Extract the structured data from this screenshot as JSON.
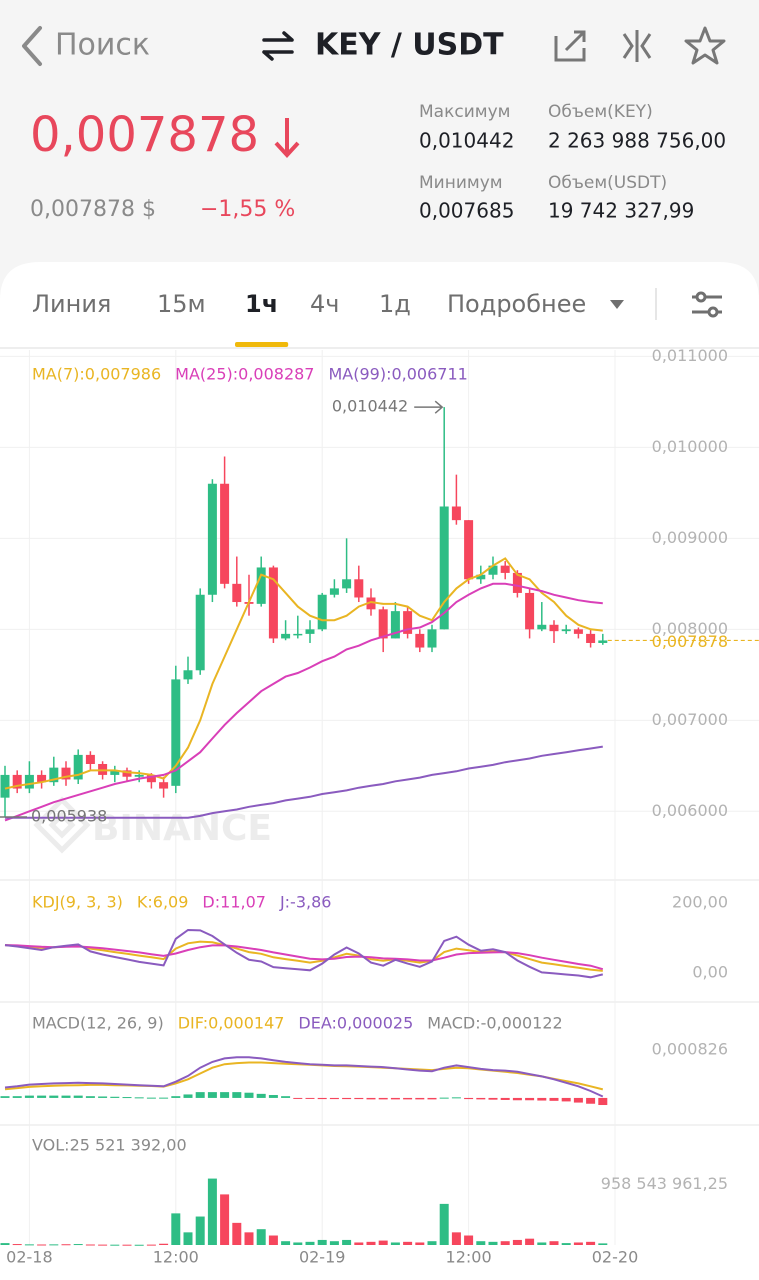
{
  "top_bar": {
    "back": "Поиск",
    "pair": "KEY / USDT"
  },
  "ticker": {
    "price": "0,007878",
    "price_usd": "0,007878 $",
    "change": "−1,55 %",
    "stats": [
      {
        "label": "Максимум",
        "value": "0,010442"
      },
      {
        "label": "Объем(KEY)",
        "value": "2 263 988 756,00"
      },
      {
        "label": "Минимум",
        "value": "0,007685"
      },
      {
        "label": "Объем(USDT)",
        "value": "19 742 327,99"
      }
    ]
  },
  "tabs": [
    "Линия",
    "15м",
    "1ч",
    "4ч",
    "1д",
    "Подробнее"
  ],
  "active_tab": 2,
  "chart_data": [
    {
      "type": "candlestick",
      "watermark": "BINANCE",
      "up_color": "#2ebd85",
      "down_color": "#f6465d",
      "open": [
        0.00615,
        0.0064,
        0.00625,
        0.0064,
        0.00632,
        0.00648,
        0.00635,
        0.00662,
        0.00652,
        0.0064,
        0.00645,
        0.00638,
        0.0064,
        0.00632,
        0.00628,
        0.00745,
        0.00755,
        0.00838,
        0.0096,
        0.0085,
        0.0083,
        0.00828,
        0.00868,
        0.0079,
        0.00795,
        0.00795,
        0.008,
        0.00838,
        0.00845,
        0.00855,
        0.00835,
        0.00822,
        0.0079,
        0.0082,
        0.00795,
        0.0078,
        0.008,
        0.00935,
        0.0092,
        0.00855,
        0.0086,
        0.0087,
        0.00862,
        0.0084,
        0.008,
        0.00805,
        0.00798,
        0.008,
        0.00795,
        0.00785
      ],
      "high": [
        0.0065,
        0.00645,
        0.00655,
        0.00645,
        0.0066,
        0.00655,
        0.00668,
        0.00666,
        0.00655,
        0.0065,
        0.00648,
        0.00645,
        0.00642,
        0.00638,
        0.0076,
        0.0077,
        0.00845,
        0.00965,
        0.0099,
        0.0088,
        0.0086,
        0.0088,
        0.0087,
        0.0081,
        0.00815,
        0.0081,
        0.0084,
        0.00855,
        0.009,
        0.0087,
        0.00845,
        0.00825,
        0.0083,
        0.00825,
        0.008,
        0.00805,
        0.010442,
        0.0097,
        0.0092,
        0.0087,
        0.0088,
        0.00875,
        0.00865,
        0.00845,
        0.0083,
        0.0081,
        0.00805,
        0.00802,
        0.008,
        0.00795
      ],
      "low": [
        0.005938,
        0.0062,
        0.0062,
        0.00625,
        0.00628,
        0.00628,
        0.0063,
        0.00645,
        0.00635,
        0.00632,
        0.00633,
        0.00632,
        0.00625,
        0.00615,
        0.0062,
        0.0074,
        0.0075,
        0.0083,
        0.00845,
        0.00825,
        0.00815,
        0.00825,
        0.00785,
        0.00788,
        0.0079,
        0.00785,
        0.00798,
        0.00835,
        0.0084,
        0.0083,
        0.00815,
        0.00775,
        0.0079,
        0.0079,
        0.00775,
        0.00775,
        0.008,
        0.00915,
        0.0085,
        0.0085,
        0.00855,
        0.00855,
        0.00835,
        0.0079,
        0.00798,
        0.00785,
        0.00795,
        0.0079,
        0.0078,
        0.00783
      ],
      "close": [
        0.0064,
        0.00625,
        0.0064,
        0.00632,
        0.00648,
        0.00635,
        0.00662,
        0.00652,
        0.0064,
        0.00645,
        0.00638,
        0.0064,
        0.00632,
        0.00625,
        0.00745,
        0.00755,
        0.00838,
        0.0096,
        0.0085,
        0.0083,
        0.00828,
        0.00868,
        0.0079,
        0.00795,
        0.00795,
        0.008,
        0.00838,
        0.00845,
        0.00855,
        0.00835,
        0.00822,
        0.0079,
        0.0082,
        0.00795,
        0.0078,
        0.008,
        0.00935,
        0.0092,
        0.00855,
        0.0086,
        0.0087,
        0.00862,
        0.0084,
        0.008,
        0.00805,
        0.00798,
        0.008,
        0.00795,
        0.00785,
        0.007878
      ],
      "series": [
        {
          "name": "MA(7):0,007986",
          "color": "#e9b523",
          "values": [
            0.00625,
            0.00628,
            0.0063,
            0.00632,
            0.00635,
            0.00638,
            0.0064,
            0.00645,
            0.00645,
            0.00645,
            0.00643,
            0.00642,
            0.0064,
            0.00636,
            0.0065,
            0.0067,
            0.007,
            0.0074,
            0.0077,
            0.008,
            0.0083,
            0.0086,
            0.00855,
            0.0084,
            0.00825,
            0.00815,
            0.0081,
            0.0081,
            0.00815,
            0.00825,
            0.0083,
            0.00828,
            0.00828,
            0.00825,
            0.00815,
            0.0081,
            0.0083,
            0.00845,
            0.00855,
            0.0086,
            0.0087,
            0.00878,
            0.0086,
            0.00855,
            0.0084,
            0.0083,
            0.00815,
            0.00805,
            0.008,
            0.007986
          ]
        },
        {
          "name": "MA(25):0,008287",
          "color": "#d93fb8",
          "values": [
            0.0059,
            0.00595,
            0.006,
            0.00605,
            0.0061,
            0.00614,
            0.00618,
            0.00622,
            0.00626,
            0.0063,
            0.00633,
            0.00636,
            0.00638,
            0.0064,
            0.00645,
            0.00655,
            0.00665,
            0.0068,
            0.00695,
            0.00708,
            0.0072,
            0.00732,
            0.0074,
            0.00748,
            0.00752,
            0.00758,
            0.00765,
            0.0077,
            0.00778,
            0.00782,
            0.00788,
            0.00792,
            0.00796,
            0.008,
            0.00802,
            0.00808,
            0.00818,
            0.0083,
            0.00838,
            0.00845,
            0.0085,
            0.0085,
            0.00848,
            0.00845,
            0.00842,
            0.00838,
            0.00835,
            0.00832,
            0.0083,
            0.008287
          ]
        },
        {
          "name": "MA(99):0,006711",
          "color": "#8a5bbf",
          "values": [
            0.00593,
            0.00593,
            0.00593,
            0.00593,
            0.00593,
            0.00593,
            0.00593,
            0.00593,
            0.00593,
            0.00593,
            0.00593,
            0.00593,
            0.00593,
            0.00593,
            0.00593,
            0.00593,
            0.00595,
            0.00598,
            0.006,
            0.00602,
            0.00605,
            0.00607,
            0.00609,
            0.00612,
            0.00614,
            0.00616,
            0.00619,
            0.00621,
            0.00623,
            0.00626,
            0.00628,
            0.0063,
            0.00633,
            0.00635,
            0.00637,
            0.0064,
            0.00642,
            0.00644,
            0.00647,
            0.00649,
            0.00651,
            0.00654,
            0.00656,
            0.00658,
            0.00661,
            0.00663,
            0.00665,
            0.00667,
            0.00669,
            0.006711
          ]
        }
      ],
      "ylim": [
        0.0053,
        0.01107
      ],
      "yticks": [
        {
          "value": 0.011,
          "label": "0,011000"
        },
        {
          "value": 0.01,
          "label": "0,010000"
        },
        {
          "value": 0.009,
          "label": "0,009000"
        },
        {
          "value": 0.008,
          "label": "0,008000"
        },
        {
          "value": 0.007,
          "label": "0,007000"
        },
        {
          "value": 0.006,
          "label": "0,006000"
        }
      ],
      "xticks": [
        {
          "value": 2,
          "label": "02-18"
        },
        {
          "value": 14,
          "label": "12:00"
        },
        {
          "value": 26,
          "label": "02-19"
        },
        {
          "value": 38,
          "label": "12:00"
        },
        {
          "value": 50,
          "label": "02-20"
        }
      ],
      "last_price": {
        "value": 0.007878,
        "label": "0,007878",
        "color": "#e9b523"
      },
      "high_marker": {
        "index": 36,
        "value": 0.010442,
        "label": "0,010442"
      },
      "low_marker": {
        "index": 0,
        "value": 0.005938,
        "label": "0,005938"
      },
      "grid": true
    },
    {
      "type": "line",
      "title": "KDJ(9, 3, 3)",
      "series": [
        {
          "name": "K:6,09",
          "color": "#e9b523",
          "values": [
            80,
            78,
            75,
            72,
            74,
            76,
            78,
            70,
            65,
            60,
            55,
            50,
            45,
            40,
            70,
            85,
            90,
            88,
            80,
            70,
            60,
            55,
            45,
            40,
            35,
            30,
            35,
            45,
            55,
            50,
            40,
            35,
            40,
            35,
            30,
            35,
            60,
            70,
            65,
            60,
            62,
            60,
            50,
            40,
            30,
            25,
            20,
            15,
            10,
            6.09
          ]
        },
        {
          "name": "D:11,07",
          "color": "#d93fb8",
          "values": [
            80,
            79,
            77,
            75,
            74,
            75,
            76,
            74,
            71,
            67,
            63,
            59,
            54,
            49,
            56,
            66,
            74,
            79,
            79,
            76,
            71,
            66,
            59,
            53,
            47,
            41,
            39,
            41,
            46,
            47,
            45,
            42,
            41,
            39,
            36,
            36,
            44,
            53,
            57,
            58,
            59,
            60,
            57,
            51,
            44,
            38,
            32,
            26,
            21,
            11.07
          ]
        },
        {
          "name": "J:-3,86",
          "color": "#8a5bbf",
          "values": [
            80,
            76,
            71,
            66,
            74,
            78,
            82,
            62,
            53,
            46,
            39,
            32,
            27,
            22,
            98,
            123,
            122,
            106,
            82,
            58,
            38,
            33,
            17,
            14,
            11,
            8,
            27,
            53,
            73,
            56,
            30,
            21,
            38,
            27,
            18,
            33,
            92,
            104,
            81,
            64,
            68,
            60,
            36,
            18,
            2,
            -1,
            -4,
            -7,
            -12,
            -3.86
          ]
        }
      ],
      "ylim": [
        -77,
        266
      ],
      "yticks": [
        {
          "value": 200,
          "label": "200,00"
        },
        {
          "value": 0,
          "label": "0,00"
        }
      ]
    },
    {
      "type": "macd",
      "title": "MACD(12, 26, 9)",
      "up_color": "#2ebd85",
      "down_color": "#f6465d",
      "series": [
        {
          "name": "DIF:0,000147",
          "color": "#e9b523",
          "values": [
            0.00015,
            0.00017,
            0.00019,
            0.0002,
            0.00021,
            0.000215,
            0.00022,
            0.000225,
            0.000225,
            0.00022,
            0.000215,
            0.00021,
            0.000205,
            0.000195,
            0.00025,
            0.00032,
            0.00042,
            0.00052,
            0.00058,
            0.0006,
            0.00061,
            0.00061,
            0.0006,
            0.00059,
            0.00058,
            0.00057,
            0.00056,
            0.00055,
            0.000545,
            0.00054,
            0.00053,
            0.00052,
            0.00051,
            0.0005,
            0.00049,
            0.00048,
            0.0005,
            0.00052,
            0.00051,
            0.00049,
            0.00047,
            0.00045,
            0.00043,
            0.0004,
            0.00037,
            0.00033,
            0.00029,
            0.00025,
            0.0002,
            0.000147
          ]
        },
        {
          "name": "DEA:0,000025",
          "color": "#8a5bbf",
          "values": [
            0.00018,
            0.0002,
            0.00023,
            0.00024,
            0.00025,
            0.000255,
            0.00026,
            0.000255,
            0.00025,
            0.00024,
            0.00023,
            0.00022,
            0.00021,
            0.0002,
            0.00028,
            0.00038,
            0.00052,
            0.00062,
            0.00068,
            0.0007,
            0.0007,
            0.00068,
            0.00065,
            0.00062,
            0.0006,
            0.00058,
            0.00057,
            0.00056,
            0.00056,
            0.00055,
            0.00054,
            0.00053,
            0.00051,
            0.00049,
            0.00047,
            0.00046,
            0.00052,
            0.00056,
            0.00053,
            0.0005,
            0.00048,
            0.00047,
            0.00045,
            0.00041,
            0.00037,
            0.00032,
            0.00026,
            0.0002,
            0.00012,
            2.5e-05
          ]
        }
      ],
      "histogram": {
        "name": "MACD:-0,000122",
        "values": [
          3e-05,
          3e-05,
          4e-05,
          4e-05,
          4e-05,
          4e-05,
          4e-05,
          3e-05,
          2.5e-05,
          2e-05,
          1.5e-05,
          1e-05,
          5e-06,
          5e-06,
          3e-05,
          6e-05,
          0.0001,
          0.0001,
          0.0001,
          0.0001,
          9e-05,
          7e-05,
          5e-05,
          3e-05,
          -1e-05,
          -1.5e-05,
          -2e-05,
          -2e-05,
          -2e-05,
          -2e-05,
          -2.5e-05,
          -2.5e-05,
          -2.5e-05,
          -2.5e-05,
          -2.5e-05,
          -2.5e-05,
          5e-06,
          1e-05,
          -2e-05,
          -2.5e-05,
          -3e-05,
          -3.5e-05,
          -4e-05,
          -4e-05,
          -4.5e-05,
          -5e-05,
          -6e-05,
          -8e-05,
          -0.0001,
          -0.000122
        ]
      },
      "ylim": [
        -0.00038,
        0.0016
      ],
      "yticks": [
        {
          "value": 0.000826,
          "label": "0,000826"
        }
      ]
    },
    {
      "type": "bar",
      "title": "VOL:25 521 392,00",
      "values": [
        30000000,
        15000000,
        10000000,
        8000000,
        10000000,
        12000000,
        15000000,
        8000000,
        6000000,
        5000000,
        5000000,
        4000000,
        6000000,
        20000000,
        500000000,
        200000000,
        450000000,
        1050000000,
        800000000,
        350000000,
        200000000,
        250000000,
        150000000,
        60000000,
        40000000,
        50000000,
        80000000,
        60000000,
        80000000,
        40000000,
        50000000,
        70000000,
        40000000,
        50000000,
        40000000,
        60000000,
        650000000,
        200000000,
        150000000,
        60000000,
        50000000,
        60000000,
        80000000,
        100000000,
        40000000,
        60000000,
        30000000,
        40000000,
        50000000,
        25521392
      ],
      "ylim": [
        0,
        1818000000
      ],
      "yticks": [
        {
          "value": 958543961.25,
          "label": "958 543 961,25"
        }
      ]
    }
  ]
}
